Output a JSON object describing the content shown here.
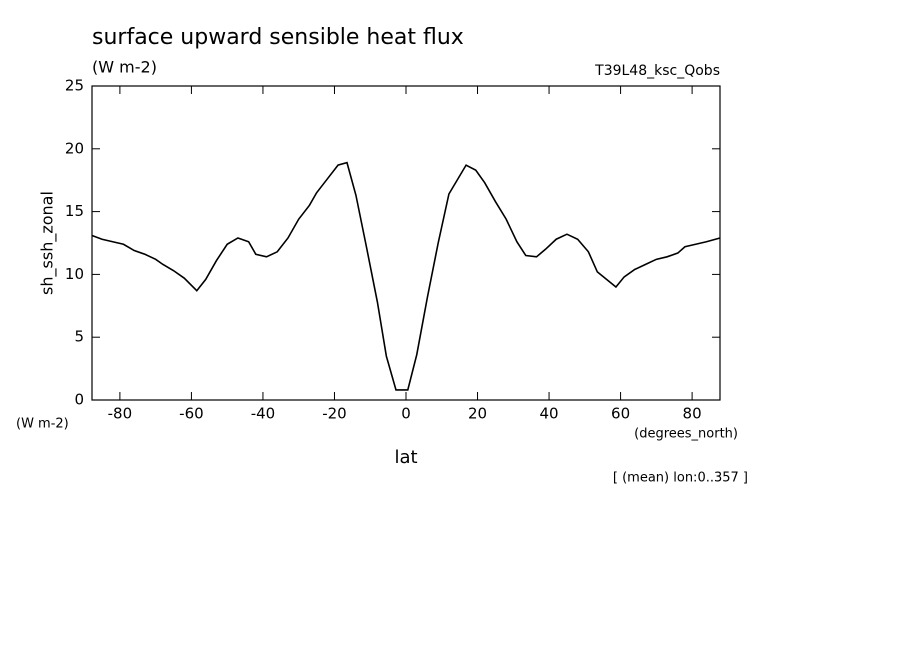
{
  "chart_data": {
    "type": "line",
    "title": "surface upward sensible heat flux",
    "subtitle": "(W m-2)",
    "run_label": "T39L48_ksc_Qobs",
    "y_label": "sh_ssh_zonal",
    "y_unit": "(W m-2)",
    "x_label": "lat",
    "x_unit": "(degrees_north)",
    "note": "[ (mean) lon:0..357 ]",
    "x": [
      -87.8,
      -85,
      -82,
      -79,
      -76,
      -73,
      -70,
      -68,
      -65,
      -62,
      -58.5,
      -56,
      -53,
      -50,
      -47,
      -44,
      -42,
      -39,
      -36,
      -33,
      -30,
      -27,
      -25,
      -22,
      -19,
      -16.5,
      -14,
      -11,
      -8,
      -5.5,
      -2.8,
      0.5,
      3,
      6,
      9,
      12,
      16.8,
      19.5,
      22,
      25,
      28,
      31,
      33.5,
      36.5,
      39,
      42,
      45,
      48,
      51,
      53.5,
      58.7,
      61,
      64,
      67,
      70,
      73,
      76,
      78,
      81,
      84,
      87.8
    ],
    "series": [
      {
        "name": "sh_ssh_zonal",
        "color": "#000000",
        "values": [
          13.1,
          12.8,
          12.6,
          12.4,
          11.9,
          11.6,
          11.2,
          10.8,
          10.3,
          9.7,
          8.7,
          9.6,
          11.1,
          12.4,
          12.9,
          12.6,
          11.6,
          11.4,
          11.8,
          12.9,
          14.4,
          15.5,
          16.5,
          17.6,
          18.7,
          18.9,
          16.3,
          12.1,
          7.8,
          3.5,
          0.8,
          0.8,
          3.6,
          8.2,
          12.5,
          16.4,
          18.7,
          18.3,
          17.3,
          15.8,
          14.4,
          12.6,
          11.5,
          11.4,
          12.0,
          12.8,
          13.2,
          12.8,
          11.8,
          10.2,
          9.0,
          9.8,
          10.4,
          10.8,
          11.2,
          11.4,
          11.7,
          12.2,
          12.4,
          12.6,
          12.9
        ]
      }
    ],
    "xlim": [
      -87.8,
      87.8
    ],
    "xticks": [
      -80,
      -60,
      -40,
      -20,
      0,
      20,
      40,
      60,
      80
    ],
    "ylim": [
      0,
      25
    ],
    "yticks": [
      0,
      5,
      10,
      15,
      20,
      25
    ]
  }
}
